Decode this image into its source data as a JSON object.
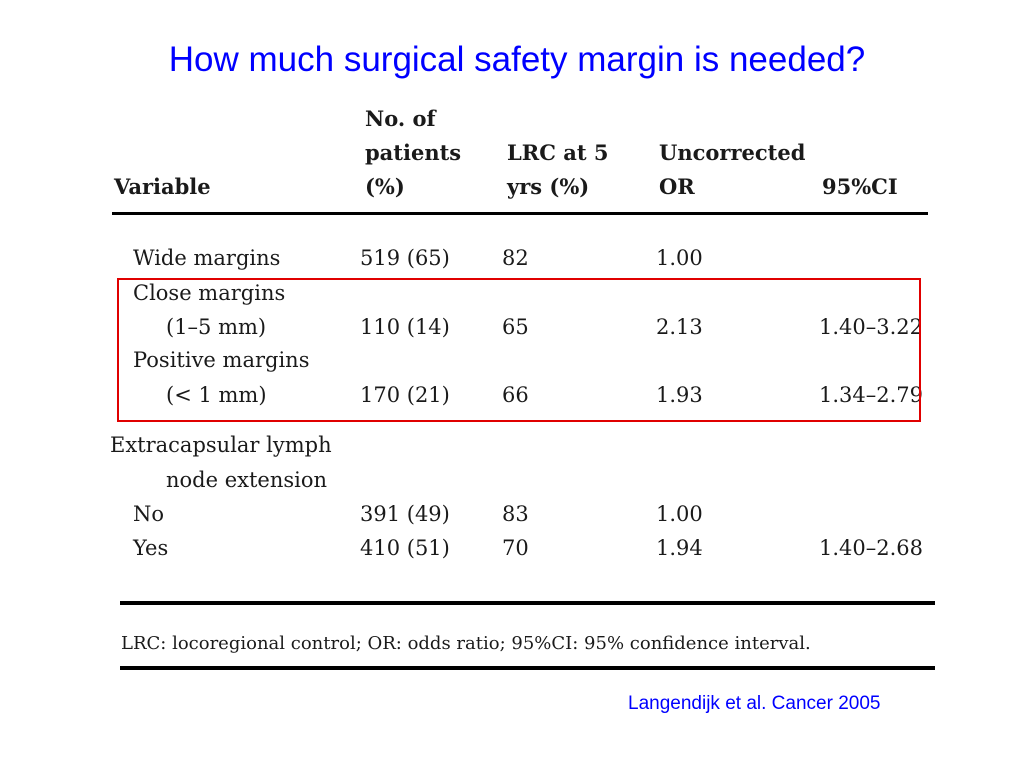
{
  "title": "How much surgical safety margin is needed?",
  "table": {
    "headers": {
      "variable": "Variable",
      "patients": [
        "No. of",
        "patients",
        "(%)"
      ],
      "lrc": [
        "LRC at 5",
        "yrs (%)"
      ],
      "or": [
        "Uncorrected",
        "OR"
      ],
      "ci": "95%CI"
    },
    "rows": {
      "wide": {
        "label": "Wide margins",
        "patients": "519 (65)",
        "lrc": "82",
        "or": "1.00",
        "ci": ""
      },
      "close": {
        "label": "Close margins",
        "sublabel": "(1–5 mm)",
        "patients": "110 (14)",
        "lrc": "65",
        "or": "2.13",
        "ci": "1.40–3.22"
      },
      "positive": {
        "label": "Positive margins",
        "sublabel": "(< 1 mm)",
        "patients": "170 (21)",
        "lrc": "66",
        "or": "1.93",
        "ci": "1.34–2.79"
      },
      "ece_group": {
        "label": "Extracapsular lymph",
        "label2": "node extension"
      },
      "ece_no": {
        "label": "No",
        "patients": "391 (49)",
        "lrc": "83",
        "or": "1.00",
        "ci": ""
      },
      "ece_yes": {
        "label": "Yes",
        "patients": "410 (51)",
        "lrc": "70",
        "or": "1.94",
        "ci": "1.40–2.68"
      }
    },
    "footnote": "LRC: locoregional control; OR: odds ratio; 95%CI: 95% confidence interval."
  },
  "citation": "Langendijk et al. Cancer 2005",
  "colors": {
    "title": "#0000ff",
    "highlight": "#e00000",
    "citation": "#0000ff"
  }
}
